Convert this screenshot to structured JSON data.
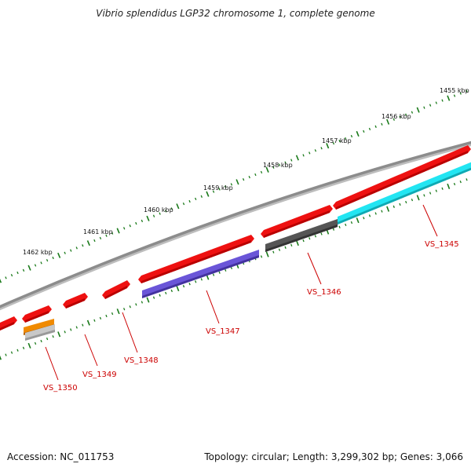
{
  "title": "Vibrio splendidus LGP32 chromosome 1, complete genome",
  "footer": {
    "accession": "Accession: NC_011753",
    "summary": "Topology: circular; Length: 3,299,302 bp; Genes: 3,066"
  },
  "ruler": {
    "labels": [
      "1455 kbp",
      "1456 kbp",
      "1457 kbp",
      "1458 kbp",
      "1459 kbp",
      "1460 kbp",
      "1461 kbp",
      "1462 kbp"
    ]
  },
  "gene_labels": [
    "VS_1345",
    "VS_1346",
    "VS_1347",
    "VS_1348",
    "VS_1349",
    "VS_1350"
  ],
  "colors": {
    "backbone": "#8c8c8c",
    "forward_gene": "#ee1111",
    "tick": "#1a7a1a",
    "label": "#cc0000",
    "cyan_feature": "#22e5f2",
    "purple_feature": "#6a55d8",
    "dark_feature": "#555555",
    "orange_feature": "#f08a00",
    "light_feature": "#c8c8c8"
  }
}
